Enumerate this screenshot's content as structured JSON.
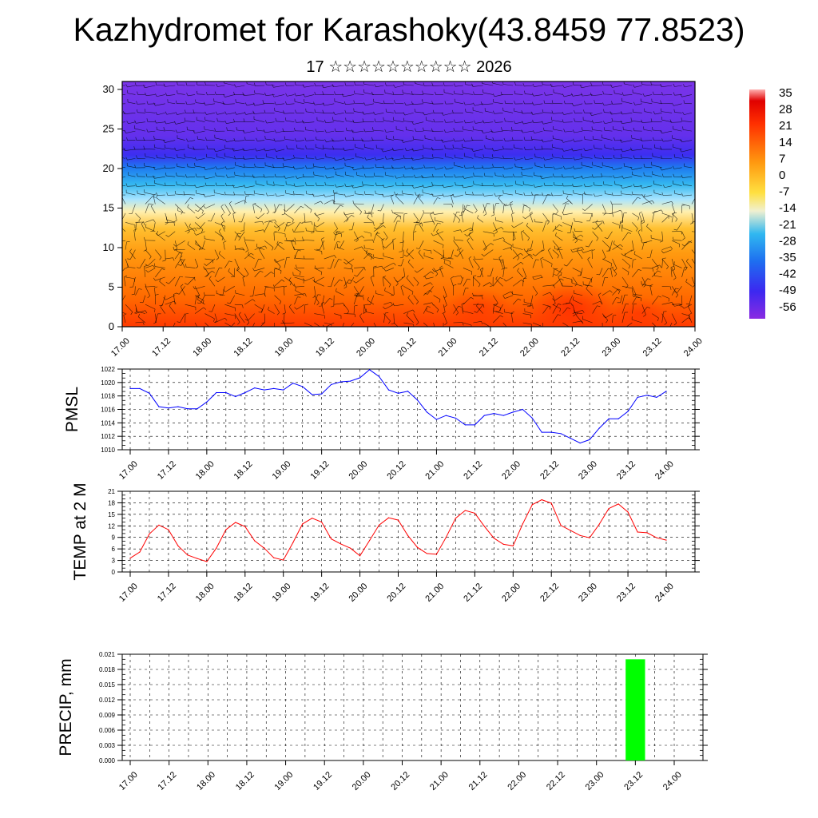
{
  "title": "Kazhydromet for Karashoky(43.8459 77.8523)",
  "subtitle": "17 ☆☆☆☆☆☆☆☆☆☆ 2026",
  "colors": {
    "pmsl_line": "#0000ff",
    "temp_line": "#ff0000",
    "precip_bar": "#00ff00"
  },
  "chart_data": [
    {
      "type": "heatmap",
      "x_ticks": [
        "17.00",
        "17.12",
        "18.00",
        "18.12",
        "19.00",
        "19.12",
        "20.00",
        "20.12",
        "21.00",
        "21.12",
        "22.00",
        "22.12",
        "23.00",
        "23.12",
        "24.00"
      ],
      "y_ticks": [
        "0",
        "5",
        "10",
        "15",
        "20",
        "25",
        "30"
      ],
      "ylim": [
        0,
        31
      ],
      "colorbar_labels": [
        "35",
        "28",
        "21",
        "14",
        "7",
        "0",
        "-7",
        "-14",
        "-21",
        "-28",
        "-35",
        "-42",
        "-49",
        "-56"
      ],
      "wind_barbs": true
    },
    {
      "type": "line",
      "ylabel": "PMSL",
      "ylim": [
        1010,
        1022
      ],
      "y_ticks": [
        "1010",
        "1012",
        "1014",
        "1016",
        "1018",
        "1020",
        "1022"
      ],
      "x_ticks": [
        "17.00",
        "17.12",
        "18.00",
        "18.12",
        "19.00",
        "19.12",
        "20.00",
        "20.12",
        "21.00",
        "21.12",
        "22.00",
        "22.12",
        "23.00",
        "23.12",
        "24.00"
      ],
      "grid": true,
      "values": [
        1019.1,
        1019.1,
        1018.4,
        1016.4,
        1016.2,
        1016.4,
        1016.1,
        1016.1,
        1017.1,
        1018.5,
        1018.5,
        1017.9,
        1018.5,
        1019.2,
        1018.9,
        1019.1,
        1018.9,
        1019.9,
        1019.4,
        1018.2,
        1018.3,
        1019.7,
        1020.1,
        1020.2,
        1020.7,
        1021.9,
        1020.9,
        1018.9,
        1018.4,
        1018.7,
        1017.4,
        1015.6,
        1014.5,
        1015.1,
        1014.7,
        1013.7,
        1013.7,
        1015.1,
        1015.4,
        1015.1,
        1015.6,
        1016.0,
        1014.7,
        1012.6,
        1012.6,
        1012.4,
        1011.7,
        1011.0,
        1011.5,
        1013.2,
        1014.6,
        1014.6,
        1015.7,
        1017.8,
        1018.1,
        1017.8,
        1018.7
      ]
    },
    {
      "type": "line",
      "ylabel": "TEMP at 2 M",
      "ylim": [
        0,
        21
      ],
      "y_ticks": [
        "0",
        "3",
        "6",
        "9",
        "12",
        "15",
        "18",
        "21"
      ],
      "x_ticks": [
        "17.00",
        "17.12",
        "18.00",
        "18.12",
        "19.00",
        "19.12",
        "20.00",
        "20.12",
        "21.00",
        "21.12",
        "22.00",
        "22.12",
        "23.00",
        "23.12",
        "24.00"
      ],
      "grid": true,
      "values": [
        3.6,
        5.2,
        9.9,
        12.2,
        11.0,
        6.8,
        4.4,
        3.5,
        2.7,
        6.2,
        11.0,
        12.9,
        11.8,
        8.1,
        6.2,
        3.7,
        3.1,
        7.6,
        12.5,
        14.0,
        13.0,
        8.6,
        7.3,
        6.2,
        4.2,
        8.2,
        12.2,
        14.1,
        13.5,
        9.5,
        6.4,
        4.8,
        4.6,
        9.0,
        14.0,
        16.0,
        15.3,
        11.9,
        8.8,
        7.2,
        6.8,
        12.5,
        17.5,
        18.8,
        17.9,
        12.1,
        10.8,
        9.5,
        8.9,
        12.4,
        16.5,
        17.7,
        15.6,
        10.4,
        10.2,
        8.9,
        8.3
      ]
    },
    {
      "type": "bar",
      "ylabel": "PRECIP, mm",
      "ylim": [
        0,
        0.021
      ],
      "y_ticks": [
        "0.000",
        "0.003",
        "0.006",
        "0.009",
        "0.012",
        "0.015",
        "0.018",
        "0.021"
      ],
      "x_ticks": [
        "17.00",
        "17.12",
        "18.00",
        "18.12",
        "19.00",
        "19.12",
        "20.00",
        "20.12",
        "21.00",
        "21.12",
        "22.00",
        "22.12",
        "23.00",
        "23.12",
        "24.00"
      ],
      "grid": true,
      "bars": [
        {
          "x_start": 153,
          "x_end": 159,
          "value": 0.02
        }
      ]
    }
  ]
}
